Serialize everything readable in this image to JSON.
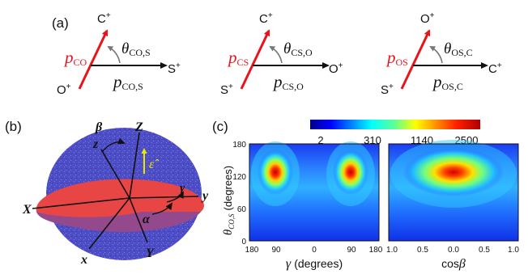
{
  "panels": {
    "a": {
      "label": "(a)",
      "diagrams": [
        {
          "top_ion": "C",
          "bottom_ion": "O",
          "right_ion": "S",
          "p_main_sub": "CO",
          "theta_sub": "CO,S",
          "p_horiz_sub": "CO,S"
        },
        {
          "top_ion": "C",
          "bottom_ion": "S",
          "right_ion": "O",
          "p_main_sub": "CS",
          "theta_sub": "CS,O",
          "p_horiz_sub": "CS,O"
        },
        {
          "top_ion": "O",
          "bottom_ion": "S",
          "right_ion": "C",
          "p_main_sub": "OS",
          "theta_sub": "OS,C",
          "p_horiz_sub": "OS,C"
        }
      ],
      "plus": "+",
      "p_symbol": "p",
      "theta_symbol": "θ"
    },
    "b": {
      "label": "(b)",
      "axes": {
        "X": "X",
        "Y": "Y",
        "Z": "Z",
        "x": "x",
        "y": "y",
        "z": "z",
        "alpha": "α",
        "beta": "β",
        "gamma": "γ",
        "epsilon": "ε̂"
      },
      "colors": {
        "disk_lab": "#4a4ac8",
        "disk_mol": "#e83a3a",
        "epsilon": "#e8e800"
      }
    },
    "c": {
      "label": "(c)",
      "colorbar_ticks": [
        "2",
        "310",
        "1140",
        "2500"
      ],
      "left_plot": {
        "ylabel_theta": "θ",
        "ylabel_sub": "CO,S",
        "ylabel_unit": "(degrees)",
        "yticks": [
          "180",
          "120",
          "60",
          "0"
        ],
        "xticks": [
          "180",
          "90",
          "0",
          "90",
          "180"
        ],
        "xlabel_symbol": "γ",
        "xlabel_unit": "(degrees)"
      },
      "right_plot": {
        "xticks": [
          "1.0",
          "0.5",
          "0.0",
          "0.5",
          "1.0"
        ],
        "xlabel_prefix": "cos",
        "xlabel_symbol": "β"
      }
    }
  }
}
